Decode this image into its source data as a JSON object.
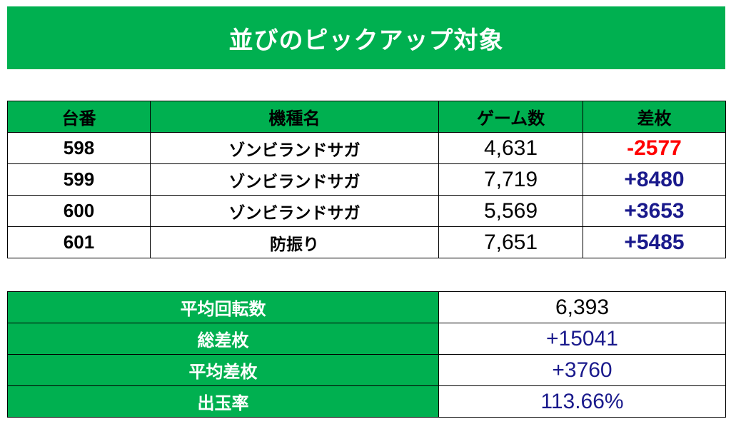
{
  "banner": {
    "title": "並びのピックアップ対象"
  },
  "table": {
    "headers": {
      "unit": "台番",
      "model": "機種名",
      "games": "ゲーム数",
      "diff": "差枚"
    },
    "rows": [
      {
        "unit": "598",
        "model": "ゾンビランドサガ",
        "games": "4,631",
        "diff": "-2577",
        "diff_color": "#ff0000"
      },
      {
        "unit": "599",
        "model": "ゾンビランドサガ",
        "games": "7,719",
        "diff": "+8480",
        "diff_color": "#1a1a8c"
      },
      {
        "unit": "600",
        "model": "ゾンビランドサガ",
        "games": "5,569",
        "diff": "+3653",
        "diff_color": "#1a1a8c"
      },
      {
        "unit": "601",
        "model": "防振り",
        "games": "7,651",
        "diff": "+5485",
        "diff_color": "#1a1a8c"
      }
    ]
  },
  "summary": {
    "avg_spins_label": "平均回転数",
    "avg_spins_value": "6,393",
    "total_diff_label": "総差枚",
    "total_diff_value": "+15041",
    "avg_diff_label": "平均差枚",
    "avg_diff_value": "+3760",
    "payout_label": "出玉率",
    "payout_value": "113.66%"
  },
  "colors": {
    "accent_green": "#00b050",
    "negative_red": "#ff0000",
    "positive_navy": "#1a1a8c"
  }
}
